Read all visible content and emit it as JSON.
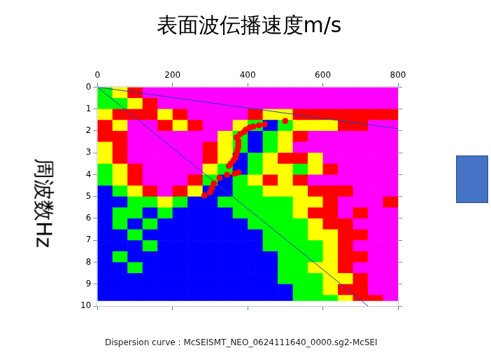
{
  "chart_data": {
    "type": "heatmap",
    "title": "表面波伝播速度m/s",
    "y_label": "周波数Hz",
    "caption": "Dispersion curve : McSEISMT_NEO_0624111640_0000.sg2-McSEI",
    "xlim": [
      0,
      800
    ],
    "xticks": [
      0,
      200,
      400,
      600,
      800
    ],
    "ylim": [
      10,
      0
    ],
    "yticks": [
      0,
      1,
      2,
      3,
      4,
      5,
      6,
      7,
      8,
      9,
      10
    ],
    "grid": false,
    "x_edges": [
      0,
      40,
      80,
      120,
      160,
      200,
      240,
      280,
      320,
      360,
      400,
      440,
      480,
      520,
      560,
      600,
      640,
      680,
      720,
      760,
      800
    ],
    "y_edges": [
      0,
      0.5,
      1,
      1.5,
      2,
      2.5,
      3,
      3.5,
      4,
      4.5,
      5,
      5.5,
      6,
      6.5,
      7,
      7.5,
      8,
      8.5,
      9,
      9.5,
      9.75
    ],
    "cell_colors": [
      "#ff00ff",
      "#ff0000",
      "#ffff00",
      "#00ff00",
      "#0000ff"
    ],
    "cells": [
      [
        3,
        2,
        1,
        0,
        0,
        0,
        0,
        0,
        0,
        0,
        0,
        0,
        0,
        0,
        0,
        0,
        0,
        0,
        0,
        0
      ],
      [
        3,
        3,
        2,
        1,
        0,
        0,
        0,
        0,
        0,
        0,
        0,
        0,
        0,
        0,
        0,
        0,
        0,
        0,
        0,
        0
      ],
      [
        2,
        1,
        1,
        1,
        2,
        1,
        0,
        0,
        0,
        0,
        1,
        2,
        2,
        1,
        1,
        1,
        1,
        1,
        1,
        1
      ],
      [
        1,
        2,
        0,
        0,
        1,
        2,
        1,
        0,
        0,
        2,
        3,
        4,
        3,
        2,
        2,
        2,
        1,
        1,
        0,
        0
      ],
      [
        1,
        1,
        0,
        0,
        0,
        0,
        0,
        0,
        2,
        3,
        4,
        3,
        2,
        1,
        0,
        0,
        0,
        0,
        0,
        0
      ],
      [
        2,
        1,
        0,
        0,
        0,
        0,
        0,
        1,
        2,
        3,
        4,
        3,
        2,
        0,
        0,
        0,
        0,
        0,
        0,
        0
      ],
      [
        2,
        1,
        0,
        0,
        0,
        0,
        0,
        1,
        2,
        4,
        3,
        2,
        1,
        1,
        2,
        0,
        0,
        0,
        0,
        0
      ],
      [
        3,
        2,
        1,
        0,
        0,
        0,
        0,
        2,
        3,
        4,
        3,
        2,
        2,
        3,
        2,
        1,
        0,
        0,
        0,
        0
      ],
      [
        3,
        2,
        1,
        0,
        0,
        0,
        1,
        3,
        4,
        3,
        2,
        1,
        2,
        1,
        0,
        0,
        0,
        0,
        0,
        0
      ],
      [
        4,
        3,
        2,
        1,
        0,
        1,
        2,
        4,
        4,
        3,
        3,
        2,
        2,
        2,
        1,
        1,
        1,
        0,
        0,
        0
      ],
      [
        4,
        4,
        3,
        3,
        2,
        3,
        4,
        4,
        3,
        3,
        3,
        3,
        3,
        2,
        2,
        1,
        0,
        0,
        0,
        1
      ],
      [
        4,
        3,
        3,
        4,
        3,
        4,
        4,
        4,
        4,
        3,
        3,
        3,
        3,
        2,
        1,
        1,
        0,
        1,
        0,
        0
      ],
      [
        4,
        3,
        4,
        3,
        4,
        4,
        4,
        4,
        4,
        4,
        3,
        3,
        3,
        3,
        2,
        1,
        1,
        0,
        0,
        0
      ],
      [
        4,
        4,
        3,
        4,
        4,
        4,
        4,
        4,
        4,
        4,
        4,
        3,
        3,
        3,
        2,
        2,
        1,
        1,
        0,
        0
      ],
      [
        4,
        4,
        4,
        3,
        4,
        4,
        4,
        4,
        4,
        4,
        4,
        3,
        3,
        3,
        3,
        2,
        1,
        0,
        0,
        0
      ],
      [
        4,
        3,
        4,
        4,
        4,
        4,
        4,
        4,
        4,
        4,
        4,
        4,
        3,
        3,
        3,
        2,
        1,
        1,
        0,
        0
      ],
      [
        4,
        4,
        3,
        4,
        4,
        4,
        4,
        4,
        4,
        4,
        4,
        4,
        3,
        3,
        2,
        2,
        1,
        0,
        0,
        0
      ],
      [
        4,
        4,
        4,
        4,
        4,
        4,
        4,
        4,
        4,
        4,
        4,
        4,
        3,
        3,
        3,
        2,
        2,
        1,
        0,
        0
      ],
      [
        4,
        4,
        4,
        4,
        4,
        4,
        4,
        4,
        4,
        4,
        4,
        4,
        4,
        3,
        3,
        2,
        1,
        1,
        0,
        0
      ],
      [
        4,
        4,
        4,
        4,
        4,
        4,
        4,
        4,
        4,
        4,
        4,
        4,
        4,
        3,
        3,
        3,
        2,
        1,
        1,
        0
      ]
    ],
    "points": {
      "x": [
        500,
        445,
        430,
        415,
        405,
        395,
        390,
        380,
        370,
        375,
        375,
        375,
        372,
        370,
        368,
        362,
        355,
        350,
        375,
        365,
        345,
        325,
        310,
        305,
        300,
        285
      ],
      "y": [
        1.55,
        1.7,
        1.75,
        1.8,
        1.85,
        1.95,
        2.05,
        2.15,
        2.3,
        2.45,
        2.6,
        2.75,
        2.9,
        3.05,
        3.2,
        3.35,
        3.5,
        3.6,
        3.9,
        3.95,
        4.0,
        4.15,
        4.4,
        4.6,
        4.8,
        4.95
      ],
      "color": "#ff0000",
      "marker": "circle"
    },
    "lines": [
      {
        "x": [
          0,
          800
        ],
        "y": [
          0,
          1.9
        ],
        "color": "#2040c0",
        "line_style": "solid"
      },
      {
        "x": [
          0,
          720
        ],
        "y": [
          0,
          10
        ],
        "color": "#2040c0",
        "line_style": "solid"
      }
    ]
  }
}
